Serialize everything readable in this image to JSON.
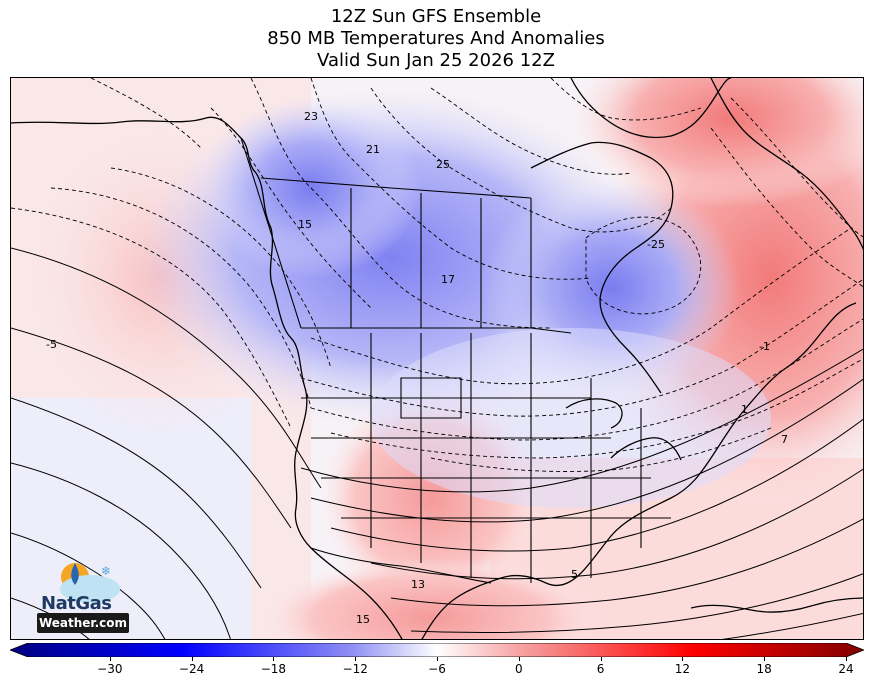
{
  "title": {
    "line1": "12Z Sun GFS Ensemble",
    "line2": "850 MB Temperatures And Anomalies",
    "line3": "Valid Sun Jan 25 2026 12Z"
  },
  "contour_labels": [
    "23",
    "21",
    "25",
    "15",
    "17",
    "-25",
    "-5",
    "-1",
    "1",
    "7",
    "13",
    "15",
    "5"
  ],
  "colorbar": {
    "ticks": [
      "−30",
      "−24",
      "−18",
      "−12",
      "−6",
      "0",
      "6",
      "12",
      "18",
      "24"
    ],
    "min": -36,
    "max": 24,
    "colors": {
      "cold_extreme": "#000080",
      "cold_mid": "#0000ff",
      "neutral": "#ffffff",
      "warm_mid": "#ff0000",
      "warm_extreme": "#800000"
    }
  },
  "logo": {
    "text1": "NatGas",
    "text2": "Weather.com"
  }
}
